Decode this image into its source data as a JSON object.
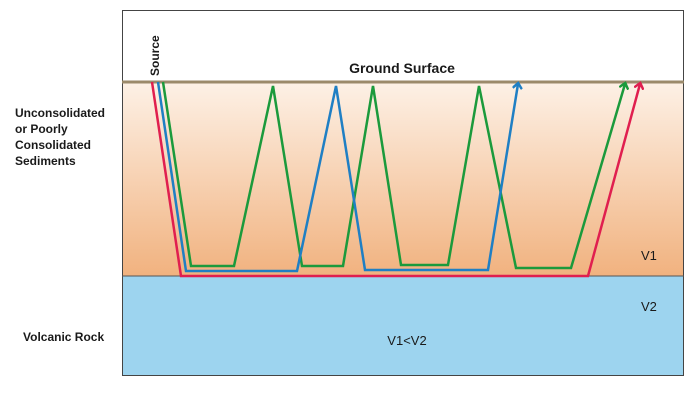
{
  "source_label": "Source",
  "surface_label": "Ground Surface",
  "sediment_label": {
    "lines": [
      "Unconsolidated",
      "or Poorly",
      "Consolidated",
      "Sediments"
    ]
  },
  "rock_label": "Volcanic Rock",
  "upper_velocity": "V1",
  "lower_velocity": "V2",
  "relation": "V1<V2"
}
